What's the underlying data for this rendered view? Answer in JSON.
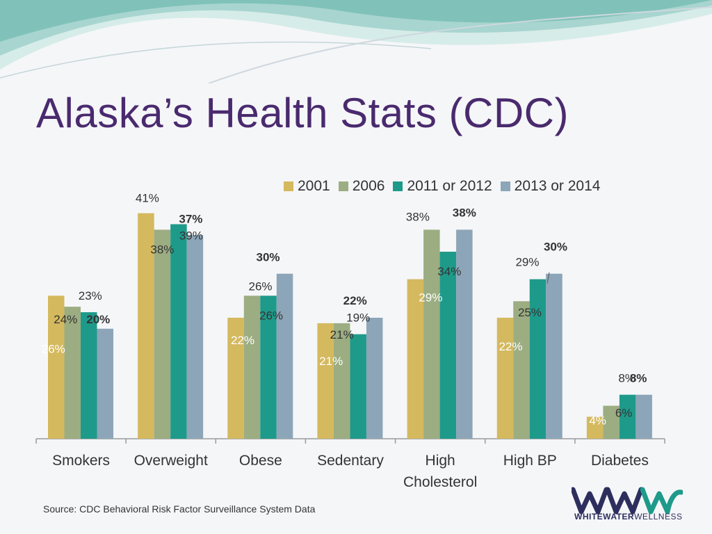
{
  "title": "Alaska’s Health Stats (CDC)",
  "source": "Source: CDC Behavioral Risk Factor Surveillance System Data",
  "logo": {
    "text_a": "WHITEWATER",
    "text_b": "WELLNESS"
  },
  "colors": {
    "title": "#4a2a6e",
    "s2001": "#d4b95e",
    "s2006": "#9cad82",
    "s2011": "#1e9a8a",
    "s2013": "#8da5b8"
  },
  "chart_data": {
    "type": "bar",
    "title": "",
    "xlabel": "",
    "ylabel": "",
    "ylim": [
      0,
      45
    ],
    "grid": false,
    "legend_position": "top-right",
    "categories": [
      "Smokers",
      "Overweight",
      "Obese",
      "Sedentary",
      "High Cholesterol",
      "High BP",
      "Diabetes"
    ],
    "category_lines": [
      [
        "Smokers"
      ],
      [
        "Overweight"
      ],
      [
        "Obese"
      ],
      [
        "Sedentary"
      ],
      [
        "High",
        "Cholesterol"
      ],
      [
        "High BP"
      ],
      [
        "Diabetes"
      ]
    ],
    "series": [
      {
        "name": "2001",
        "color": "#d4b95e",
        "values": [
          26,
          41,
          22,
          21,
          29,
          22,
          4
        ]
      },
      {
        "name": "2006",
        "color": "#9cad82",
        "values": [
          24,
          38,
          26,
          21,
          38,
          25,
          6
        ]
      },
      {
        "name": "2011 or 2012",
        "color": "#1e9a8a",
        "values": [
          23,
          39,
          26,
          19,
          34,
          29,
          8
        ]
      },
      {
        "name": "2013 or 2014",
        "color": "#8da5b8",
        "values": [
          20,
          37,
          30,
          22,
          38,
          30,
          8
        ]
      }
    ],
    "labels": [
      {
        "text": "26%",
        "cat": 0,
        "s": 0,
        "dx": -4,
        "dy": 82,
        "color": "#ffffff",
        "bold": false
      },
      {
        "text": "24%",
        "cat": 0,
        "s": 1,
        "dx": -10,
        "dy": 24,
        "color": "#333333",
        "bold": false
      },
      {
        "text": "23%",
        "cat": 0,
        "s": 2,
        "dx": 2,
        "dy": -18,
        "color": "#333333",
        "bold": false
      },
      {
        "text": "20%",
        "cat": 0,
        "s": 3,
        "dx": -10,
        "dy": -8,
        "color": "#333333",
        "bold": true
      },
      {
        "text": "41%",
        "cat": 1,
        "s": 0,
        "dx": 2,
        "dy": -16,
        "color": "#333333",
        "bold": false
      },
      {
        "text": "38%",
        "cat": 1,
        "s": 1,
        "dx": 0,
        "dy": 34,
        "color": "#333333",
        "bold": false
      },
      {
        "text": "39%",
        "cat": 1,
        "s": 2,
        "dx": 18,
        "dy": 22,
        "color": "#333333",
        "bold": false
      },
      {
        "text": "37%",
        "cat": 1,
        "s": 3,
        "dx": -6,
        "dy": -18,
        "color": "#333333",
        "bold": true
      },
      {
        "text": "22%",
        "cat": 2,
        "s": 0,
        "dx": 10,
        "dy": 38,
        "color": "#ffffff",
        "bold": false
      },
      {
        "text": "26%",
        "cat": 2,
        "s": 1,
        "dx": 12,
        "dy": -8,
        "color": "#333333",
        "bold": false
      },
      {
        "text": "26%",
        "cat": 2,
        "s": 2,
        "dx": 4,
        "dy": 34,
        "color": "#333333",
        "bold": false
      },
      {
        "text": "30%",
        "cat": 2,
        "s": 3,
        "dx": -24,
        "dy": -18,
        "color": "#333333",
        "bold": true
      },
      {
        "text": "21%",
        "cat": 3,
        "s": 0,
        "dx": 8,
        "dy": 60,
        "color": "#ffffff",
        "bold": false
      },
      {
        "text": "21%",
        "cat": 3,
        "s": 1,
        "dx": 0,
        "dy": 22,
        "color": "#333333",
        "bold": false
      },
      {
        "text": "19%",
        "cat": 3,
        "s": 2,
        "dx": 0,
        "dy": -18,
        "color": "#333333",
        "bold": false
      },
      {
        "text": "22%",
        "cat": 3,
        "s": 3,
        "dx": -28,
        "dy": -19,
        "color": "#333333",
        "bold": true
      },
      {
        "text": "29%",
        "cat": 4,
        "s": 0,
        "dx": 22,
        "dy": 32,
        "color": "#ffffff",
        "bold": false
      },
      {
        "text": "38%",
        "cat": 4,
        "s": 1,
        "dx": -20,
        "dy": -13,
        "color": "#333333",
        "bold": false
      },
      {
        "text": "34%",
        "cat": 4,
        "s": 2,
        "dx": 2,
        "dy": 34,
        "color": "#333333",
        "bold": false
      },
      {
        "text": "38%",
        "cat": 4,
        "s": 3,
        "dx": 0,
        "dy": -19,
        "color": "#333333",
        "bold": true
      },
      {
        "text": "22%",
        "cat": 5,
        "s": 0,
        "dx": 8,
        "dy": 47,
        "color": "#ffffff",
        "bold": false
      },
      {
        "text": "25%",
        "cat": 5,
        "s": 1,
        "dx": 12,
        "dy": 22,
        "color": "#333333",
        "bold": false
      },
      {
        "text": "29%",
        "cat": 5,
        "s": 2,
        "dx": -15,
        "dy": -19,
        "color": "#333333",
        "bold": false
      },
      {
        "text": "30%",
        "cat": 5,
        "s": 3,
        "dx": 2,
        "dy": -33,
        "color": "#333333",
        "bold": true
      },
      {
        "text": "4%",
        "cat": 6,
        "s": 0,
        "dx": 4,
        "dy": 11,
        "color": "#ffffff",
        "bold": false
      },
      {
        "text": "6%",
        "cat": 6,
        "s": 1,
        "dx": 18,
        "dy": 16,
        "color": "#333333",
        "bold": false
      },
      {
        "text": "8%",
        "cat": 6,
        "s": 2,
        "dx": -1,
        "dy": -18,
        "color": "#333333",
        "bold": false
      },
      {
        "text": "8%",
        "cat": 6,
        "s": 3,
        "dx": -8,
        "dy": -18,
        "color": "#333333",
        "bold": true
      }
    ]
  }
}
